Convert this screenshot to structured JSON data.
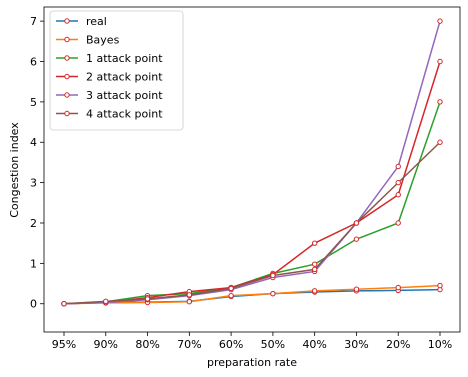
{
  "chart_data": {
    "type": "line",
    "title": "",
    "xlabel": "preparation rate",
    "ylabel": "Congestion index",
    "categories": [
      "95%",
      "90%",
      "80%",
      "70%",
      "60%",
      "50%",
      "40%",
      "30%",
      "20%",
      "10%"
    ],
    "ylim": [
      -0.7,
      7.35
    ],
    "yticks": [
      0,
      1,
      2,
      3,
      4,
      5,
      6,
      7
    ],
    "grid": false,
    "legend_position": "top-left",
    "marker_color": "#d62728",
    "series": [
      {
        "name": "real",
        "color": "#1f77b4",
        "values": [
          0,
          0.03,
          0.04,
          0.06,
          0.18,
          0.25,
          0.29,
          0.32,
          0.33,
          0.35
        ]
      },
      {
        "name": "Bayes",
        "color": "#ff7f0e",
        "values": [
          0,
          0.02,
          0.03,
          0.05,
          0.2,
          0.25,
          0.32,
          0.36,
          0.4,
          0.45
        ]
      },
      {
        "name": "1 attack point",
        "color": "#2ca02c",
        "values": [
          0,
          0.05,
          0.2,
          0.25,
          0.4,
          0.75,
          0.98,
          1.6,
          2.0,
          5.0
        ]
      },
      {
        "name": "2 attack point",
        "color": "#d62728",
        "values": [
          0,
          0.03,
          0.15,
          0.3,
          0.4,
          0.72,
          1.5,
          2.0,
          2.7,
          6.0
        ]
      },
      {
        "name": "3 attack point",
        "color": "#9467bd",
        "values": [
          0,
          0.03,
          0.1,
          0.2,
          0.35,
          0.65,
          0.8,
          2.0,
          3.4,
          7.0
        ]
      },
      {
        "name": "4 attack point",
        "color": "#8c564b",
        "values": [
          0,
          0.06,
          0.12,
          0.22,
          0.38,
          0.7,
          0.85,
          2.0,
          3.0,
          4.0
        ]
      }
    ]
  }
}
